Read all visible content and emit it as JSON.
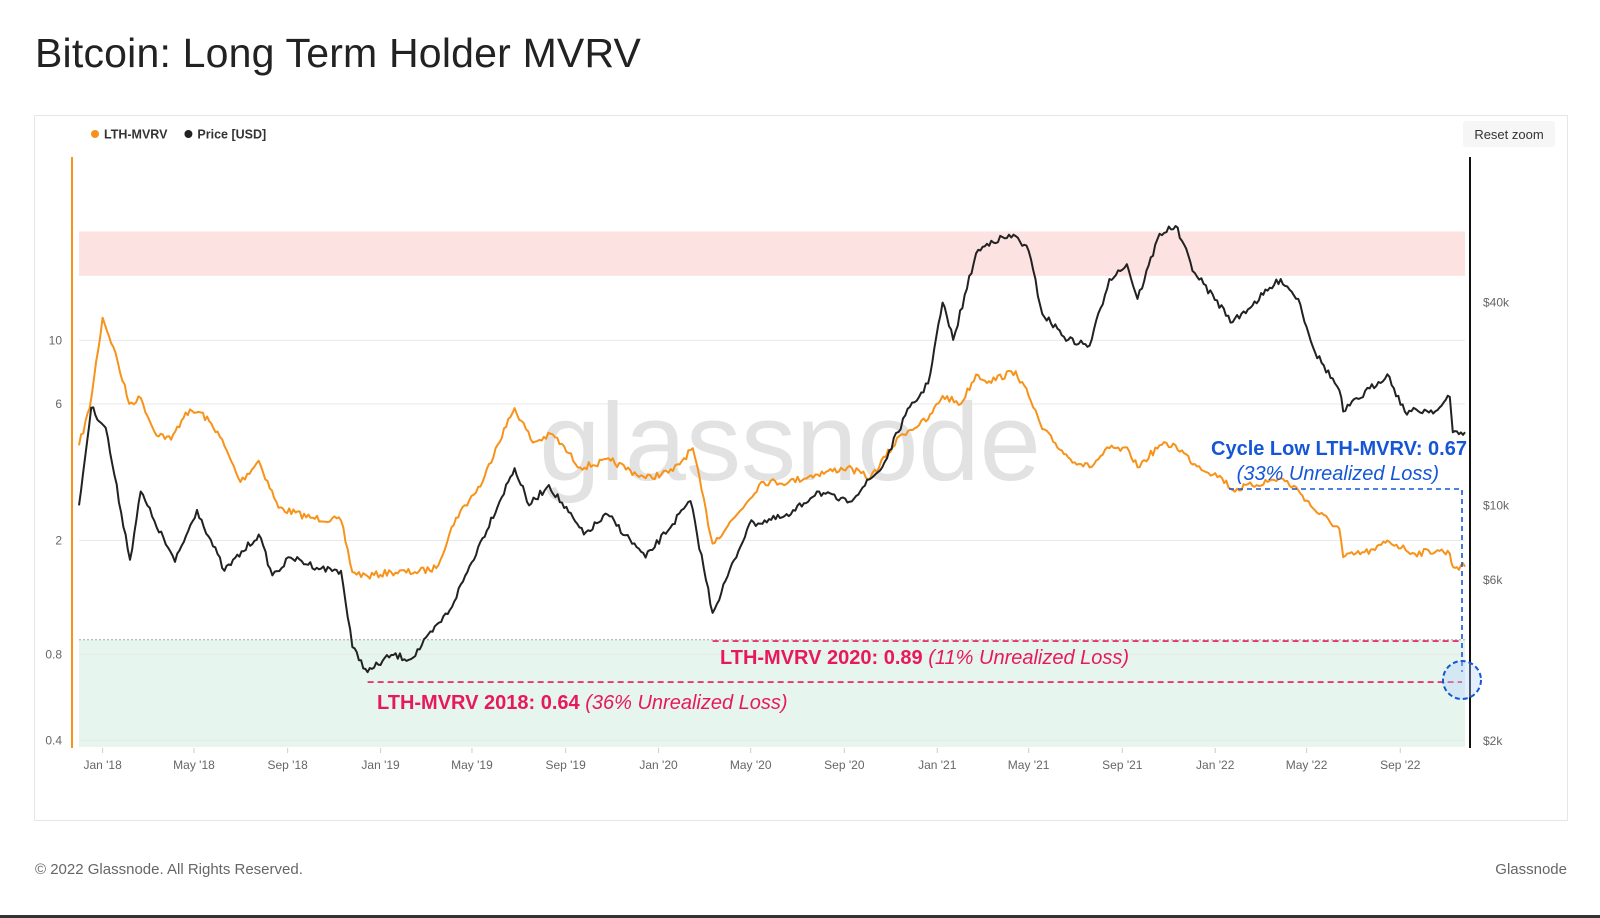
{
  "title": "Bitcoin: Long Term Holder MVRV",
  "reset_zoom_label": "Reset zoom",
  "footer": {
    "copyright": "© 2022 Glassnode. All Rights Reserved.",
    "brand": "Glassnode"
  },
  "watermark": "glassnode",
  "chart_data": {
    "type": "line",
    "legend_placement": "top-left",
    "grid": true,
    "x_range": [
      "2017-12",
      "2022-11-25"
    ],
    "x_ticks": [
      "Jan '18",
      "May '18",
      "Sep '18",
      "Jan '19",
      "May '19",
      "Sep '19",
      "Jan '20",
      "May '20",
      "Sep '20",
      "Jan '21",
      "May '21",
      "Sep '21",
      "Jan '22",
      "May '22",
      "Sep '22"
    ],
    "y_left": {
      "scale": "log",
      "ticks": [
        "0.4",
        "0.8",
        "2",
        "6",
        "10"
      ],
      "tick_values": [
        0.4,
        0.8,
        2,
        6,
        10
      ],
      "color": "#f7931a"
    },
    "y_right": {
      "scale": "log",
      "ticks": [
        "$2k",
        "$6k",
        "$10k",
        "$40k"
      ],
      "tick_values": [
        2000,
        6000,
        10000,
        40000
      ],
      "color": "#222222"
    },
    "zones": [
      {
        "color": "#fde2e2",
        "axis": "right",
        "from": 48000,
        "to": 65000
      },
      {
        "color": "#e6f5ee",
        "axis": "left",
        "from": 0.38,
        "to": 0.9
      }
    ],
    "series": [
      {
        "name": "LTH-MVRV",
        "axis": "left",
        "color": "#f7931a",
        "points": [
          [
            "2017-12-01",
            4.3
          ],
          [
            "2017-12-15",
            5.8
          ],
          [
            "2018-01-01",
            12
          ],
          [
            "2018-01-15",
            9.5
          ],
          [
            "2018-02-05",
            6
          ],
          [
            "2018-02-20",
            6.3
          ],
          [
            "2018-03-10",
            4.8
          ],
          [
            "2018-04-01",
            4.5
          ],
          [
            "2018-04-20",
            5.6
          ],
          [
            "2018-05-10",
            5.6
          ],
          [
            "2018-06-01",
            4.8
          ],
          [
            "2018-07-01",
            3.2
          ],
          [
            "2018-07-25",
            3.8
          ],
          [
            "2018-08-20",
            2.6
          ],
          [
            "2018-10-01",
            2.4
          ],
          [
            "2018-11-10",
            2.35
          ],
          [
            "2018-11-25",
            1.55
          ],
          [
            "2018-12-15",
            1.5
          ],
          [
            "2019-01-15",
            1.55
          ],
          [
            "2019-02-15",
            1.55
          ],
          [
            "2019-03-15",
            1.6
          ],
          [
            "2019-04-10",
            2.4
          ],
          [
            "2019-05-15",
            3.2
          ],
          [
            "2019-06-01",
            4.2
          ],
          [
            "2019-06-26",
            5.8
          ],
          [
            "2019-07-20",
            4.4
          ],
          [
            "2019-08-15",
            4.7
          ],
          [
            "2019-09-20",
            3.6
          ],
          [
            "2019-10-30",
            3.8
          ],
          [
            "2019-12-15",
            3.3
          ],
          [
            "2020-01-20",
            3.5
          ],
          [
            "2020-02-15",
            4.2
          ],
          [
            "2020-03-12",
            1.95
          ],
          [
            "2020-04-15",
            2.5
          ],
          [
            "2020-05-15",
            3.2
          ],
          [
            "2020-06-20",
            3.2
          ],
          [
            "2020-07-25",
            3.4
          ],
          [
            "2020-09-05",
            3.6
          ],
          [
            "2020-10-05",
            3.3
          ],
          [
            "2020-11-15",
            4.7
          ],
          [
            "2020-12-20",
            5.3
          ],
          [
            "2021-01-08",
            6.4
          ],
          [
            "2021-02-01",
            6.0
          ],
          [
            "2021-02-21",
            7.6
          ],
          [
            "2021-03-10",
            7.2
          ],
          [
            "2021-04-14",
            7.8
          ],
          [
            "2021-05-01",
            6.4
          ],
          [
            "2021-05-19",
            4.9
          ],
          [
            "2021-06-22",
            3.9
          ],
          [
            "2021-07-20",
            3.6
          ],
          [
            "2021-08-15",
            4.2
          ],
          [
            "2021-09-10",
            4.1
          ],
          [
            "2021-09-21",
            3.6
          ],
          [
            "2021-10-20",
            4.3
          ],
          [
            "2021-11-10",
            4.3
          ],
          [
            "2021-12-05",
            3.7
          ],
          [
            "2022-01-10",
            3.3
          ],
          [
            "2022-01-24",
            3.0
          ],
          [
            "2022-03-28",
            3.3
          ],
          [
            "2022-04-20",
            3.0
          ],
          [
            "2022-05-12",
            2.55
          ],
          [
            "2022-06-13",
            2.2
          ],
          [
            "2022-06-18",
            1.75
          ],
          [
            "2022-07-30",
            1.85
          ],
          [
            "2022-08-15",
            2.0
          ],
          [
            "2022-09-20",
            1.8
          ],
          [
            "2022-10-20",
            1.85
          ],
          [
            "2022-11-05",
            1.8
          ],
          [
            "2022-11-09",
            1.62
          ],
          [
            "2022-11-25",
            1.62
          ]
        ]
      },
      {
        "name": "Price [USD]",
        "axis": "right",
        "color": "#222222",
        "points": [
          [
            "2017-12-01",
            10000
          ],
          [
            "2017-12-17",
            19500
          ],
          [
            "2018-01-05",
            17000
          ],
          [
            "2018-02-06",
            6900
          ],
          [
            "2018-02-20",
            11000
          ],
          [
            "2018-03-10",
            9000
          ],
          [
            "2018-04-06",
            6800
          ],
          [
            "2018-05-05",
            9700
          ],
          [
            "2018-06-10",
            6400
          ],
          [
            "2018-07-25",
            8200
          ],
          [
            "2018-08-12",
            6200
          ],
          [
            "2018-09-05",
            7000
          ],
          [
            "2018-10-15",
            6500
          ],
          [
            "2018-11-10",
            6400
          ],
          [
            "2018-11-25",
            3800
          ],
          [
            "2018-12-15",
            3200
          ],
          [
            "2019-01-15",
            3600
          ],
          [
            "2019-02-10",
            3500
          ],
          [
            "2019-04-02",
            4900
          ],
          [
            "2019-05-15",
            8000
          ],
          [
            "2019-06-26",
            12900
          ],
          [
            "2019-07-15",
            10000
          ],
          [
            "2019-08-10",
            11500
          ],
          [
            "2019-09-25",
            8200
          ],
          [
            "2019-10-26",
            9400
          ],
          [
            "2019-12-15",
            7000
          ],
          [
            "2020-02-12",
            10300
          ],
          [
            "2020-03-12",
            4800
          ],
          [
            "2020-04-29",
            8800
          ],
          [
            "2020-06-20",
            9300
          ],
          [
            "2020-07-27",
            11000
          ],
          [
            "2020-09-05",
            10200
          ],
          [
            "2020-10-21",
            13000
          ],
          [
            "2020-11-20",
            18500
          ],
          [
            "2020-12-20",
            23000
          ],
          [
            "2021-01-08",
            40000
          ],
          [
            "2021-01-22",
            31000
          ],
          [
            "2021-02-21",
            56000
          ],
          [
            "2021-03-13",
            61000
          ],
          [
            "2021-04-14",
            63000
          ],
          [
            "2021-05-01",
            57000
          ],
          [
            "2021-05-19",
            37000
          ],
          [
            "2021-06-22",
            31000
          ],
          [
            "2021-07-20",
            29800
          ],
          [
            "2021-08-15",
            47000
          ],
          [
            "2021-09-07",
            52000
          ],
          [
            "2021-09-21",
            41000
          ],
          [
            "2021-10-20",
            64000
          ],
          [
            "2021-11-10",
            67500
          ],
          [
            "2021-12-05",
            49000
          ],
          [
            "2022-01-24",
            35000
          ],
          [
            "2022-03-28",
            47000
          ],
          [
            "2022-04-20",
            41000
          ],
          [
            "2022-05-12",
            28500
          ],
          [
            "2022-06-13",
            22000
          ],
          [
            "2022-06-18",
            19000
          ],
          [
            "2022-08-15",
            24500
          ],
          [
            "2022-09-07",
            19000
          ],
          [
            "2022-10-20",
            19200
          ],
          [
            "2022-11-05",
            21000
          ],
          [
            "2022-11-09",
            16500
          ],
          [
            "2022-11-25",
            16500
          ]
        ]
      }
    ],
    "annotations": [
      {
        "color": "#e8185f",
        "bold": "LTH-MVRV 2018: 0.64",
        "italic": "(36% Unrealized Loss)",
        "level": 0.64
      },
      {
        "color": "#e8185f",
        "bold": "LTH-MVRV 2020: 0.89",
        "italic": "(11% Unrealized Loss)",
        "level": 0.89
      },
      {
        "color": "#1556d6",
        "bold": "Cycle Low LTH-MVRV: 0.67",
        "italic": "(33% Unrealized Loss)",
        "level": 0.67
      }
    ]
  }
}
